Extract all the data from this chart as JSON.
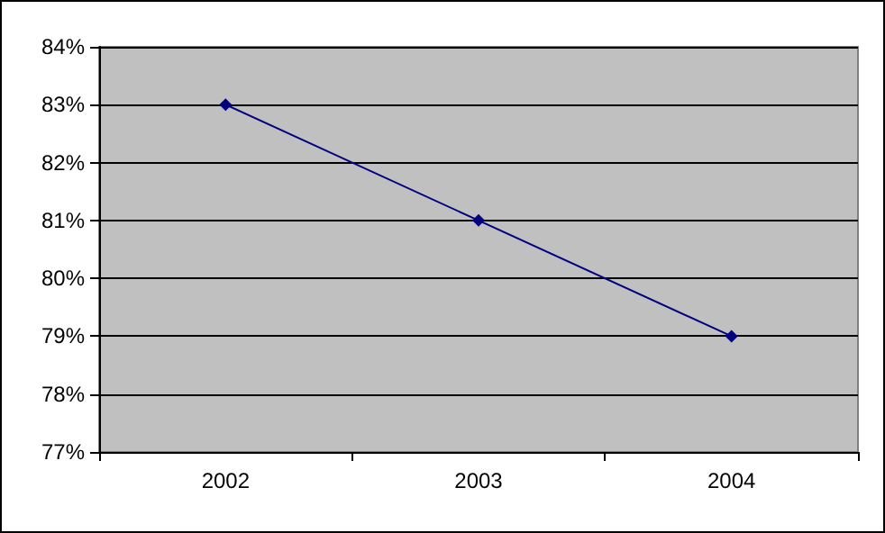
{
  "chart_data": {
    "type": "line",
    "categories": [
      "2002",
      "2003",
      "2004"
    ],
    "series": [
      {
        "color": "#000080",
        "values": [
          83,
          81,
          79
        ]
      }
    ],
    "ylim": [
      77,
      84
    ],
    "yticks": [
      {
        "value": 77,
        "label": "77%"
      },
      {
        "value": 78,
        "label": "78%"
      },
      {
        "value": 79,
        "label": "79%"
      },
      {
        "value": 80,
        "label": "80%"
      },
      {
        "value": 81,
        "label": "81%"
      },
      {
        "value": 82,
        "label": "82%"
      },
      {
        "value": 83,
        "label": "83%"
      },
      {
        "value": 84,
        "label": "84%"
      }
    ],
    "grid": "y",
    "marker": "diamond",
    "line_style": "solid"
  }
}
